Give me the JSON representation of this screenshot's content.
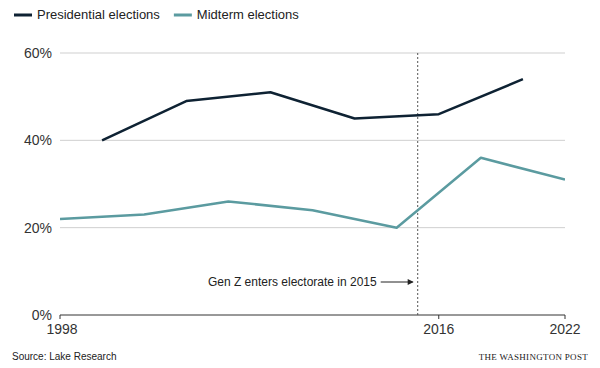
{
  "chart_data": {
    "type": "line",
    "series": [
      {
        "name": "Presidential elections",
        "color": "#0e2233",
        "x": [
          2000,
          2004,
          2008,
          2012,
          2016,
          2020
        ],
        "values": [
          40,
          49,
          51,
          45,
          46,
          54
        ]
      },
      {
        "name": "Midterm elections",
        "color": "#5b9ba0",
        "x": [
          1998,
          2002,
          2006,
          2010,
          2014,
          2018,
          2022
        ],
        "values": [
          22,
          23,
          26,
          24,
          20,
          36,
          31
        ]
      }
    ],
    "xlim": [
      1998,
      2022
    ],
    "xticks": [
      1998,
      2016,
      2022
    ],
    "ylim": [
      0,
      60
    ],
    "yticks": [
      {
        "value": 0,
        "label": "0%"
      },
      {
        "value": 20,
        "label": "20%"
      },
      {
        "value": 40,
        "label": "40%"
      },
      {
        "value": 60,
        "label": "60%"
      }
    ],
    "grid": true,
    "legend": "top-left",
    "annotations": [
      {
        "text": "Gen Z enters electorate in 2015",
        "x": 2015
      }
    ],
    "source": "Source: Lake Research",
    "credit": "THE WASHINGTON POST"
  }
}
